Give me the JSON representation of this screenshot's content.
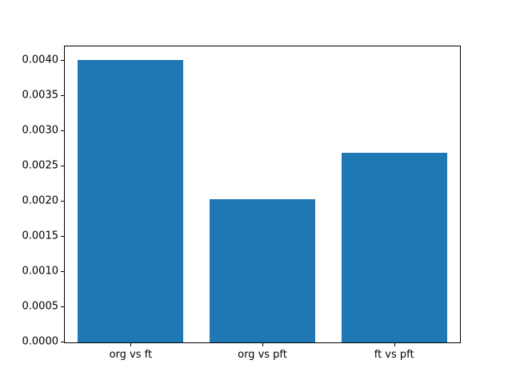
{
  "chart_data": {
    "type": "bar",
    "title": "",
    "xlabel": "",
    "ylabel": "",
    "categories": [
      "org vs ft",
      "org vs pft",
      "ft vs pft"
    ],
    "values": [
      0.00401,
      0.00203,
      0.00269
    ],
    "ylim": [
      0,
      0.0042
    ],
    "yticks": [
      0.0,
      0.0005,
      0.001,
      0.0015,
      0.002,
      0.0025,
      0.003,
      0.0035,
      0.004
    ],
    "ytick_decimals": 4,
    "bar_width_fraction": 0.8,
    "bar_color": "#1f77b4",
    "axis_color": "#000000",
    "background_color": "#ffffff",
    "grid": false,
    "legend_position": "none"
  }
}
